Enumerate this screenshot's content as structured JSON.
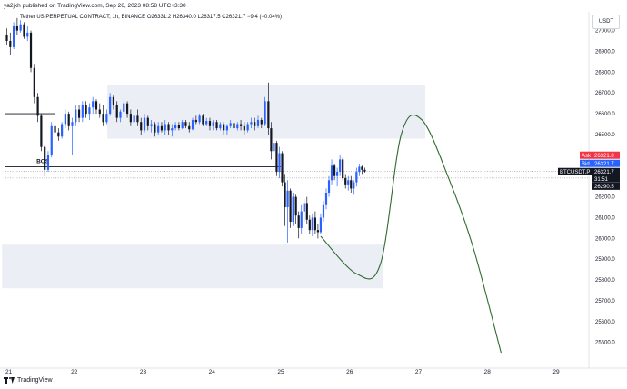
{
  "header": {
    "published_line": "ya2jkh published on TradingView.com, Sep 26, 2023 08:58 UTC+3:30",
    "symbol_line": "Tether US PERPETUAL CONTRACT, 1h, BINANCE",
    "ohlc": {
      "open": "O26331.2",
      "high": "H26340.0",
      "low": "L26317.5",
      "close": "C26321.7",
      "change": "−9.4 (−0.04%)"
    }
  },
  "currency_button": "USDT",
  "footer": {
    "brand": "TradingView"
  },
  "colors": {
    "up": "#2962ff",
    "down": "#131722",
    "zone": "#eceef5",
    "path": "#2e6b2e",
    "ask": "#f23645",
    "bid": "#2962ff",
    "price_tag": "#131722",
    "grid_text": "#131722"
  },
  "chart_data": {
    "type": "candlestick",
    "x_ticks": [
      "21",
      "22",
      "23",
      "24",
      "25",
      "26",
      "27",
      "28",
      "29"
    ],
    "y_ticks": [
      "27000.0",
      "26900.0",
      "26800.0",
      "26700.0",
      "26600.0",
      "26500.0",
      "26400.0",
      "26300.0",
      "26200.0",
      "26100.0",
      "26000.0",
      "25900.0",
      "25800.0",
      "25700.0",
      "25600.0",
      "25500.0"
    ],
    "ylim": [
      25420,
      27090
    ],
    "xlim_days": [
      21.0,
      29.0
    ],
    "annotations": {
      "bos_label": "BOS",
      "bos_level": 26345,
      "upper_line_level": 26600,
      "zones": [
        {
          "x": [
            22.48,
            27.1
          ],
          "y": [
            26480,
            26740
          ]
        },
        {
          "x": [
            20.95,
            26.48
          ],
          "y": [
            25760,
            25970
          ]
        }
      ],
      "projection": [
        [
          25.58,
          26010
        ],
        [
          26.1,
          25830
        ],
        [
          26.45,
          25880
        ],
        [
          26.75,
          26500
        ],
        [
          27.05,
          26570
        ],
        [
          27.45,
          26280
        ],
        [
          27.8,
          25950
        ],
        [
          28.2,
          25450
        ]
      ]
    },
    "price_scale": {
      "symbol_tag": "BTCUSDT.P",
      "ask": {
        "label": "Ask",
        "value": "26321.8"
      },
      "bid": {
        "label": "Bid",
        "value": "26321.7"
      },
      "last": "26321.7",
      "countdown": "31:51",
      "other": "26290.5"
    },
    "candles": [
      {
        "t": 21.02,
        "o": 26980,
        "h": 27010,
        "l": 26930,
        "c": 26950
      },
      {
        "t": 21.07,
        "o": 26950,
        "h": 26990,
        "l": 26880,
        "c": 26920
      },
      {
        "t": 21.12,
        "o": 26920,
        "h": 27040,
        "l": 26910,
        "c": 27020
      },
      {
        "t": 21.17,
        "o": 27020,
        "h": 27060,
        "l": 26980,
        "c": 27000
      },
      {
        "t": 21.22,
        "o": 27000,
        "h": 27050,
        "l": 26990,
        "c": 27030
      },
      {
        "t": 21.27,
        "o": 27030,
        "h": 27040,
        "l": 26960,
        "c": 26970
      },
      {
        "t": 21.32,
        "o": 26970,
        "h": 27020,
        "l": 26950,
        "c": 26990
      },
      {
        "t": 21.37,
        "o": 26990,
        "h": 27000,
        "l": 26800,
        "c": 26820
      },
      {
        "t": 21.42,
        "o": 26820,
        "h": 26840,
        "l": 26650,
        "c": 26680
      },
      {
        "t": 21.47,
        "o": 26680,
        "h": 26700,
        "l": 26560,
        "c": 26590
      },
      {
        "t": 21.52,
        "o": 26590,
        "h": 26600,
        "l": 26420,
        "c": 26440
      },
      {
        "t": 21.57,
        "o": 26440,
        "h": 26450,
        "l": 26300,
        "c": 26330
      },
      {
        "t": 21.62,
        "o": 26330,
        "h": 26420,
        "l": 26320,
        "c": 26400
      },
      {
        "t": 21.67,
        "o": 26400,
        "h": 26560,
        "l": 26390,
        "c": 26540
      },
      {
        "t": 21.72,
        "o": 26540,
        "h": 26600,
        "l": 26480,
        "c": 26510
      },
      {
        "t": 21.77,
        "o": 26510,
        "h": 26530,
        "l": 26470,
        "c": 26490
      },
      {
        "t": 21.82,
        "o": 26490,
        "h": 26560,
        "l": 26480,
        "c": 26550
      },
      {
        "t": 21.87,
        "o": 26550,
        "h": 26620,
        "l": 26530,
        "c": 26600
      },
      {
        "t": 21.92,
        "o": 26600,
        "h": 26610,
        "l": 26520,
        "c": 26540
      },
      {
        "t": 21.97,
        "o": 26540,
        "h": 26580,
        "l": 26400,
        "c": 26560
      },
      {
        "t": 22.02,
        "o": 26560,
        "h": 26640,
        "l": 26540,
        "c": 26620
      },
      {
        "t": 22.07,
        "o": 26620,
        "h": 26640,
        "l": 26560,
        "c": 26580
      },
      {
        "t": 22.12,
        "o": 26580,
        "h": 26660,
        "l": 26560,
        "c": 26640
      },
      {
        "t": 22.17,
        "o": 26640,
        "h": 26660,
        "l": 26580,
        "c": 26600
      },
      {
        "t": 22.22,
        "o": 26600,
        "h": 26650,
        "l": 26570,
        "c": 26630
      },
      {
        "t": 22.27,
        "o": 26630,
        "h": 26680,
        "l": 26600,
        "c": 26660
      },
      {
        "t": 22.32,
        "o": 26660,
        "h": 26670,
        "l": 26600,
        "c": 26620
      },
      {
        "t": 22.37,
        "o": 26620,
        "h": 26650,
        "l": 26580,
        "c": 26600
      },
      {
        "t": 22.42,
        "o": 26600,
        "h": 26640,
        "l": 26540,
        "c": 26560
      },
      {
        "t": 22.47,
        "o": 26560,
        "h": 26620,
        "l": 26550,
        "c": 26600
      },
      {
        "t": 22.52,
        "o": 26600,
        "h": 26700,
        "l": 26590,
        "c": 26680
      },
      {
        "t": 22.57,
        "o": 26680,
        "h": 26690,
        "l": 26620,
        "c": 26640
      },
      {
        "t": 22.62,
        "o": 26640,
        "h": 26660,
        "l": 26560,
        "c": 26580
      },
      {
        "t": 22.67,
        "o": 26580,
        "h": 26620,
        "l": 26560,
        "c": 26610
      },
      {
        "t": 22.72,
        "o": 26610,
        "h": 26670,
        "l": 26600,
        "c": 26650
      },
      {
        "t": 22.77,
        "o": 26650,
        "h": 26660,
        "l": 26580,
        "c": 26600
      },
      {
        "t": 22.82,
        "o": 26600,
        "h": 26620,
        "l": 26540,
        "c": 26560
      },
      {
        "t": 22.87,
        "o": 26560,
        "h": 26610,
        "l": 26550,
        "c": 26590
      },
      {
        "t": 22.92,
        "o": 26590,
        "h": 26620,
        "l": 26540,
        "c": 26560
      },
      {
        "t": 22.97,
        "o": 26560,
        "h": 26580,
        "l": 26500,
        "c": 26520
      },
      {
        "t": 23.02,
        "o": 26520,
        "h": 26600,
        "l": 26510,
        "c": 26580
      },
      {
        "t": 23.07,
        "o": 26580,
        "h": 26590,
        "l": 26520,
        "c": 26540
      },
      {
        "t": 23.12,
        "o": 26540,
        "h": 26570,
        "l": 26510,
        "c": 26550
      },
      {
        "t": 23.17,
        "o": 26550,
        "h": 26560,
        "l": 26490,
        "c": 26510
      },
      {
        "t": 23.22,
        "o": 26510,
        "h": 26560,
        "l": 26500,
        "c": 26540
      },
      {
        "t": 23.27,
        "o": 26540,
        "h": 26560,
        "l": 26510,
        "c": 26520
      },
      {
        "t": 23.32,
        "o": 26520,
        "h": 26570,
        "l": 26500,
        "c": 26550
      },
      {
        "t": 23.37,
        "o": 26550,
        "h": 26560,
        "l": 26500,
        "c": 26520
      },
      {
        "t": 23.42,
        "o": 26520,
        "h": 26550,
        "l": 26490,
        "c": 26530
      },
      {
        "t": 23.47,
        "o": 26530,
        "h": 26560,
        "l": 26520,
        "c": 26545
      },
      {
        "t": 23.52,
        "o": 26545,
        "h": 26560,
        "l": 26520,
        "c": 26530
      },
      {
        "t": 23.57,
        "o": 26530,
        "h": 26570,
        "l": 26525,
        "c": 26560
      },
      {
        "t": 23.62,
        "o": 26560,
        "h": 26570,
        "l": 26530,
        "c": 26540
      },
      {
        "t": 23.67,
        "o": 26540,
        "h": 26560,
        "l": 26510,
        "c": 26525
      },
      {
        "t": 23.72,
        "o": 26525,
        "h": 26580,
        "l": 26520,
        "c": 26570
      },
      {
        "t": 23.77,
        "o": 26570,
        "h": 26590,
        "l": 26550,
        "c": 26560
      },
      {
        "t": 23.82,
        "o": 26560,
        "h": 26600,
        "l": 26550,
        "c": 26590
      },
      {
        "t": 23.87,
        "o": 26590,
        "h": 26600,
        "l": 26540,
        "c": 26550
      },
      {
        "t": 23.92,
        "o": 26550,
        "h": 26580,
        "l": 26540,
        "c": 26565
      },
      {
        "t": 23.97,
        "o": 26565,
        "h": 26580,
        "l": 26520,
        "c": 26540
      },
      {
        "t": 24.02,
        "o": 26540,
        "h": 26570,
        "l": 26520,
        "c": 26560
      },
      {
        "t": 24.07,
        "o": 26560,
        "h": 26570,
        "l": 26520,
        "c": 26530
      },
      {
        "t": 24.12,
        "o": 26530,
        "h": 26560,
        "l": 26520,
        "c": 26550
      },
      {
        "t": 24.17,
        "o": 26550,
        "h": 26560,
        "l": 26500,
        "c": 26520
      },
      {
        "t": 24.22,
        "o": 26520,
        "h": 26550,
        "l": 26500,
        "c": 26540
      },
      {
        "t": 24.27,
        "o": 26540,
        "h": 26570,
        "l": 26530,
        "c": 26555
      },
      {
        "t": 24.32,
        "o": 26555,
        "h": 26560,
        "l": 26520,
        "c": 26530
      },
      {
        "t": 24.37,
        "o": 26530,
        "h": 26560,
        "l": 26520,
        "c": 26550
      },
      {
        "t": 24.42,
        "o": 26550,
        "h": 26570,
        "l": 26520,
        "c": 26540
      },
      {
        "t": 24.47,
        "o": 26540,
        "h": 26560,
        "l": 26500,
        "c": 26520
      },
      {
        "t": 24.52,
        "o": 26520,
        "h": 26560,
        "l": 26510,
        "c": 26550
      },
      {
        "t": 24.57,
        "o": 26550,
        "h": 26580,
        "l": 26530,
        "c": 26560
      },
      {
        "t": 24.62,
        "o": 26560,
        "h": 26580,
        "l": 26520,
        "c": 26540
      },
      {
        "t": 24.67,
        "o": 26540,
        "h": 26590,
        "l": 26530,
        "c": 26570
      },
      {
        "t": 24.72,
        "o": 26570,
        "h": 26580,
        "l": 26530,
        "c": 26550
      },
      {
        "t": 24.77,
        "o": 26550,
        "h": 26680,
        "l": 26540,
        "c": 26660
      },
      {
        "t": 24.82,
        "o": 26660,
        "h": 26750,
        "l": 26500,
        "c": 26530
      },
      {
        "t": 24.86,
        "o": 26530,
        "h": 26560,
        "l": 26380,
        "c": 26420
      },
      {
        "t": 24.9,
        "o": 26420,
        "h": 26480,
        "l": 26330,
        "c": 26460
      },
      {
        "t": 24.94,
        "o": 26460,
        "h": 26470,
        "l": 26300,
        "c": 26320
      },
      {
        "t": 24.98,
        "o": 26320,
        "h": 26440,
        "l": 26290,
        "c": 26410
      },
      {
        "t": 25.02,
        "o": 26410,
        "h": 26420,
        "l": 26250,
        "c": 26270
      },
      {
        "t": 25.06,
        "o": 26270,
        "h": 26310,
        "l": 26060,
        "c": 26150
      },
      {
        "t": 25.1,
        "o": 26150,
        "h": 26280,
        "l": 25980,
        "c": 26230
      },
      {
        "t": 25.14,
        "o": 26230,
        "h": 26240,
        "l": 26050,
        "c": 26080
      },
      {
        "t": 25.18,
        "o": 26080,
        "h": 26220,
        "l": 26060,
        "c": 26200
      },
      {
        "t": 25.22,
        "o": 26200,
        "h": 26210,
        "l": 26070,
        "c": 26110
      },
      {
        "t": 25.26,
        "o": 26110,
        "h": 26130,
        "l": 26000,
        "c": 26050
      },
      {
        "t": 25.3,
        "o": 26050,
        "h": 26160,
        "l": 26020,
        "c": 26130
      },
      {
        "t": 25.34,
        "o": 26130,
        "h": 26190,
        "l": 26080,
        "c": 26170
      },
      {
        "t": 25.38,
        "o": 26170,
        "h": 26200,
        "l": 26070,
        "c": 26090
      },
      {
        "t": 25.42,
        "o": 26090,
        "h": 26110,
        "l": 26020,
        "c": 26040
      },
      {
        "t": 25.46,
        "o": 26040,
        "h": 26120,
        "l": 26010,
        "c": 26100
      },
      {
        "t": 25.5,
        "o": 26100,
        "h": 26130,
        "l": 26020,
        "c": 26040
      },
      {
        "t": 25.54,
        "o": 26040,
        "h": 26070,
        "l": 26000,
        "c": 26030
      },
      {
        "t": 25.58,
        "o": 26030,
        "h": 26120,
        "l": 26020,
        "c": 26100
      },
      {
        "t": 25.62,
        "o": 26100,
        "h": 26180,
        "l": 26080,
        "c": 26160
      },
      {
        "t": 25.66,
        "o": 26160,
        "h": 26240,
        "l": 26140,
        "c": 26220
      },
      {
        "t": 25.7,
        "o": 26220,
        "h": 26300,
        "l": 26200,
        "c": 26280
      },
      {
        "t": 25.74,
        "o": 26280,
        "h": 26380,
        "l": 26260,
        "c": 26350
      },
      {
        "t": 25.78,
        "o": 26350,
        "h": 26360,
        "l": 26280,
        "c": 26300
      },
      {
        "t": 25.82,
        "o": 26300,
        "h": 26340,
        "l": 26250,
        "c": 26320
      },
      {
        "t": 25.86,
        "o": 26320,
        "h": 26400,
        "l": 26300,
        "c": 26380
      },
      {
        "t": 25.9,
        "o": 26380,
        "h": 26390,
        "l": 26280,
        "c": 26290
      },
      {
        "t": 25.94,
        "o": 26290,
        "h": 26310,
        "l": 26240,
        "c": 26260
      },
      {
        "t": 25.98,
        "o": 26260,
        "h": 26300,
        "l": 26230,
        "c": 26280
      },
      {
        "t": 26.02,
        "o": 26280,
        "h": 26300,
        "l": 26220,
        "c": 26240
      },
      {
        "t": 26.06,
        "o": 26240,
        "h": 26280,
        "l": 26210,
        "c": 26270
      },
      {
        "t": 26.1,
        "o": 26270,
        "h": 26340,
        "l": 26250,
        "c": 26320
      },
      {
        "t": 26.14,
        "o": 26320,
        "h": 26360,
        "l": 26300,
        "c": 26345
      },
      {
        "t": 26.18,
        "o": 26345,
        "h": 26350,
        "l": 26310,
        "c": 26330
      },
      {
        "t": 26.22,
        "o": 26330,
        "h": 26340,
        "l": 26317,
        "c": 26322
      }
    ]
  }
}
